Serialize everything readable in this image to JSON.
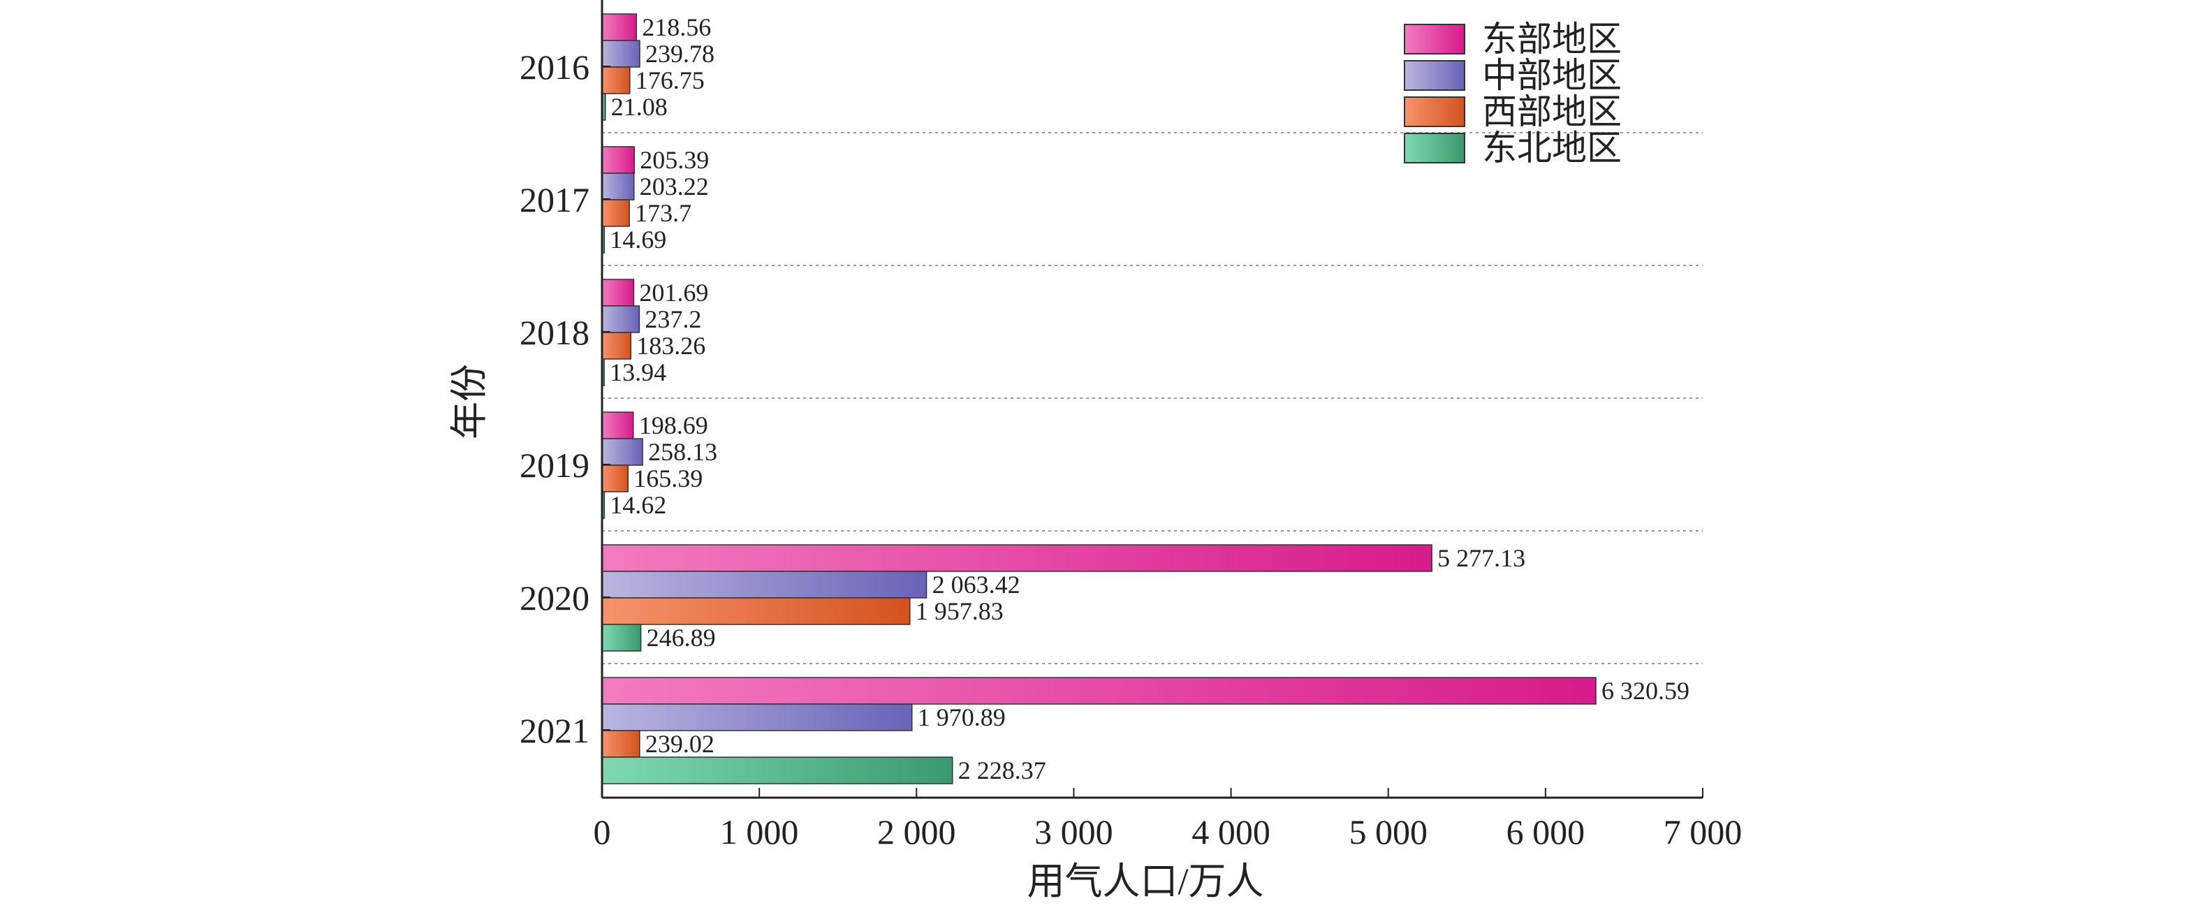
{
  "chart_data": {
    "type": "bar",
    "orientation": "horizontal",
    "categories": [
      "2016",
      "2017",
      "2018",
      "2019",
      "2020",
      "2021"
    ],
    "series": [
      {
        "name": "东部地区",
        "color": "#d81b8c",
        "values": [
          218.56,
          205.39,
          201.69,
          198.69,
          5277.13,
          6320.59
        ],
        "labels": [
          "218.56",
          "205.39",
          "201.69",
          "198.69",
          "5 277.13",
          "6 320.59"
        ]
      },
      {
        "name": "中部地区",
        "color": "#6a63b8",
        "values": [
          239.78,
          203.22,
          237.2,
          258.13,
          2063.42,
          1970.89
        ],
        "labels": [
          "239.78",
          "203.22",
          "237.2",
          "258.13",
          "2 063.42",
          "1 970.89"
        ]
      },
      {
        "name": "西部地区",
        "color": "#d4531f",
        "values": [
          176.75,
          173.7,
          183.26,
          165.39,
          1957.83,
          239.02
        ],
        "labels": [
          "176.75",
          "173.7",
          "183.26",
          "165.39",
          "1 957.83",
          "239.02"
        ]
      },
      {
        "name": "东北地区",
        "color": "#3a9a6e",
        "values": [
          21.08,
          14.69,
          13.94,
          14.62,
          246.89,
          2228.37
        ],
        "labels": [
          "21.08",
          "14.69",
          "13.94",
          "14.62",
          "246.89",
          "2 228.37"
        ]
      }
    ],
    "xlabel": "用气人口/万人",
    "ylabel": "年份",
    "xlim": [
      0,
      7000
    ],
    "xticks": [
      0,
      1000,
      2000,
      3000,
      4000,
      5000,
      6000,
      7000
    ],
    "xtick_labels": [
      "0",
      "1 000",
      "2 000",
      "3 000",
      "4 000",
      "5 000",
      "6 000",
      "7 000"
    ],
    "grid": "dotted separators between year groups",
    "legend_position": "top-right"
  },
  "colors": {
    "east_light": "#f27bbf",
    "east_dark": "#d81b8c",
    "central_light": "#b9b6e0",
    "central_dark": "#6a63b8",
    "west_light": "#f7936a",
    "west_dark": "#d4531f",
    "northeast_light": "#7fd9b0",
    "northeast_dark": "#3a9a6e"
  }
}
